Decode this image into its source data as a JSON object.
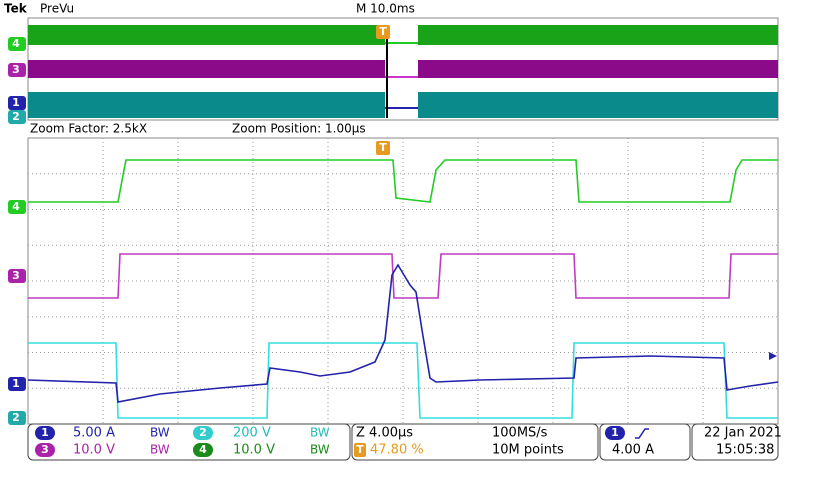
{
  "header": {
    "brand": "Tek",
    "mode": "PreVu",
    "timebase": "M 10.0ms"
  },
  "zoom": {
    "factor": "Zoom Factor: 2.5kX",
    "position": "Zoom Position: 1.00µs"
  },
  "channel_markers": [
    "1",
    "2",
    "3",
    "4"
  ],
  "trigger_marker": "T",
  "bw_icon": "BW",
  "readout": {
    "ch1": {
      "number": "1",
      "scale": "5.00 A"
    },
    "ch2": {
      "number": "2",
      "scale": "200 V"
    },
    "ch3": {
      "number": "3",
      "scale": "10.0 V"
    },
    "ch4": {
      "number": "4",
      "scale": "10.0 V"
    },
    "zoom_scale": "Z 4.00µs",
    "sample_rate": "100MS/s",
    "record_length": "10M points",
    "trigger_position": "47.80 %",
    "trigger_source": "1",
    "trigger_level": "4.00 A",
    "date": "22 Jan 2021",
    "time": "15:05:38"
  }
}
